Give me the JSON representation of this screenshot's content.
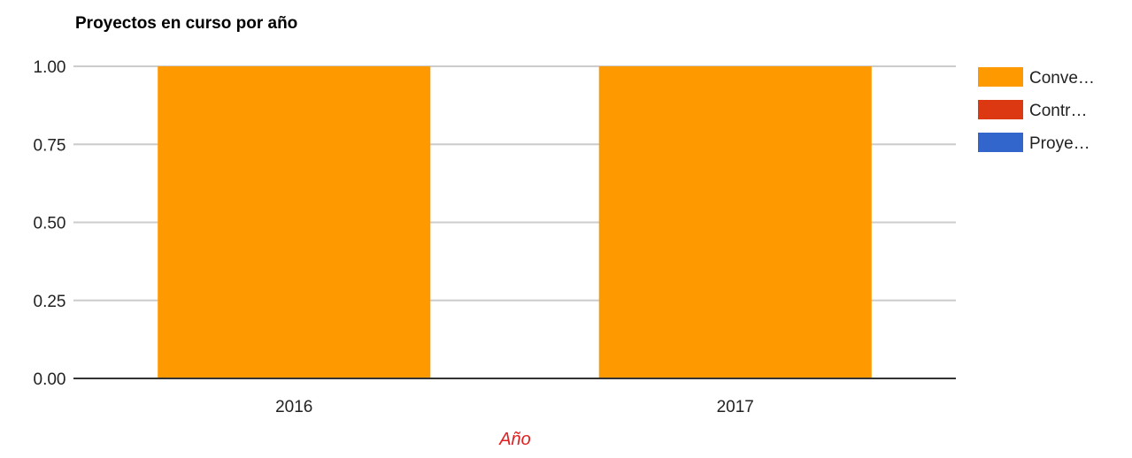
{
  "chart_data": {
    "type": "bar",
    "stacked": true,
    "title": "Proyectos en curso por año",
    "xlabel": "Año",
    "ylabel": "",
    "categories": [
      "2016",
      "2017"
    ],
    "ylim": [
      0,
      1
    ],
    "yticks": [
      "0.00",
      "0.25",
      "0.50",
      "0.75",
      "1.00"
    ],
    "ytick_values": [
      0,
      0.25,
      0.5,
      0.75,
      1
    ],
    "grid": true,
    "legend_position": "right",
    "series": [
      {
        "name": "Conve…",
        "color": "#ff9900",
        "values": [
          1,
          1
        ]
      },
      {
        "name": "Contr…",
        "color": "#dc3912",
        "values": [
          0,
          0
        ]
      },
      {
        "name": "Proye…",
        "color": "#3366cc",
        "values": [
          0,
          0
        ]
      }
    ],
    "xlabel_color": "#e02020"
  }
}
